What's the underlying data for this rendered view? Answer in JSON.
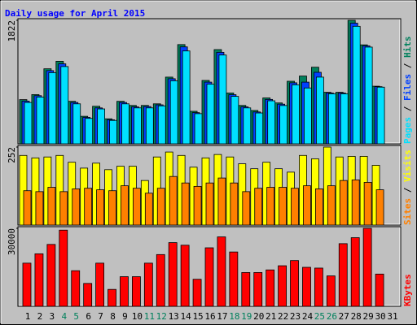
{
  "chart_data": [
    {
      "type": "bar",
      "title": "Daily usage for April 2015",
      "categories": [
        "1",
        "2",
        "3",
        "4",
        "5",
        "6",
        "7",
        "8",
        "9",
        "10",
        "11",
        "12",
        "13",
        "14",
        "15",
        "16",
        "17",
        "18",
        "19",
        "20",
        "21",
        "22",
        "23",
        "24",
        "25",
        "26",
        "27",
        "28",
        "29",
        "30",
        "31"
      ],
      "category_colors": [
        "#000000",
        "#000000",
        "#000000",
        "#00805c",
        "#00805c",
        "#000000",
        "#000000",
        "#000000",
        "#000000",
        "#000000",
        "#00805c",
        "#00805c",
        "#000000",
        "#000000",
        "#000000",
        "#000000",
        "#000000",
        "#00805c",
        "#00805c",
        "#000000",
        "#000000",
        "#000000",
        "#000000",
        "#000000",
        "#00805c",
        "#00805c",
        "#000000",
        "#000000",
        "#000000",
        "#000000",
        "#000000"
      ],
      "ylim": [
        0,
        1822
      ],
      "yticks": [
        1822
      ],
      "legend_separator": " / ",
      "series": [
        {
          "name": "Hits",
          "color": "#00805c",
          "values": [
            652,
            726,
            1107,
            1218,
            627,
            406,
            554,
            369,
            627,
            566,
            566,
            590,
            984,
            1464,
            480,
            935,
            1390,
            750,
            566,
            492,
            677,
            603,
            923,
            1000,
            1130,
            760,
            760,
            1822,
            1460,
            850,
            0
          ]
        },
        {
          "name": "Files",
          "color": "#0040ff",
          "values": [
            630,
            710,
            1080,
            1180,
            610,
            390,
            530,
            355,
            610,
            545,
            550,
            575,
            960,
            1430,
            460,
            910,
            1350,
            725,
            545,
            470,
            655,
            585,
            900,
            910,
            1055,
            750,
            750,
            1780,
            1445,
            843,
            0
          ]
        },
        {
          "name": "Pages",
          "color": "#00e0ff",
          "values": [
            610,
            690,
            1050,
            1140,
            590,
            375,
            515,
            345,
            590,
            530,
            530,
            560,
            930,
            1370,
            445,
            880,
            1310,
            700,
            530,
            455,
            635,
            565,
            870,
            824,
            984,
            738,
            738,
            1734,
            1427,
            836,
            0
          ]
        }
      ]
    },
    {
      "type": "bar",
      "ylim": [
        0,
        252
      ],
      "yticks": [
        252
      ],
      "legend_separator": " / ",
      "series": [
        {
          "name": "Visits",
          "color": "#ffff00",
          "values": [
            225,
            217,
            220,
            225,
            203,
            184,
            200,
            179,
            190,
            190,
            144,
            220,
            236,
            225,
            187,
            217,
            228,
            220,
            198,
            182,
            203,
            182,
            171,
            225,
            214,
            252,
            220,
            222,
            222,
            193,
            0
          ]
        },
        {
          "name": "Sites",
          "color": "#ff8000",
          "values": [
            111,
            108,
            122,
            108,
            117,
            119,
            114,
            111,
            127,
            119,
            103,
            119,
            157,
            136,
            125,
            136,
            152,
            136,
            108,
            119,
            122,
            122,
            119,
            127,
            117,
            127,
            144,
            146,
            138,
            114,
            0
          ]
        }
      ]
    },
    {
      "type": "bar",
      "ylim": [
        0,
        30000
      ],
      "yticks": [
        30000
      ],
      "legend_separator": " / ",
      "series": [
        {
          "name": "KBytes",
          "color": "#ff0000",
          "values": [
            16600,
            20200,
            23800,
            29300,
            13700,
            8800,
            16600,
            6500,
            11400,
            11400,
            16600,
            19900,
            24500,
            23500,
            10400,
            22500,
            26700,
            20900,
            13000,
            13000,
            14000,
            15600,
            17600,
            15000,
            14700,
            11700,
            24100,
            26400,
            30000,
            12400,
            0
          ]
        }
      ]
    }
  ]
}
